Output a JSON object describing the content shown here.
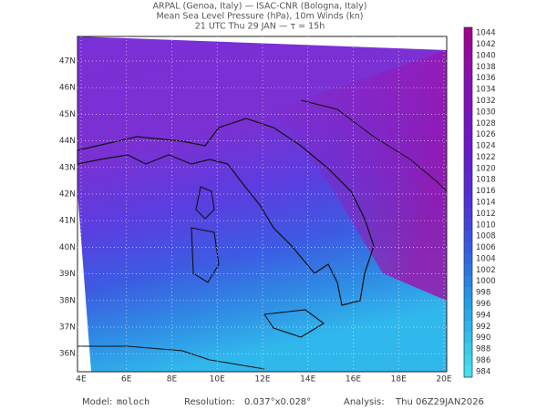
{
  "header": {
    "lines": [
      "ARPAL (Genoa, Italy)  —  ISAC-CNR (Bologna, Italy)",
      "Mean Sea Level Pressure (hPa), 10m Winds (kn)",
      "21 UTC Thu 29 JAN  —  τ = 15h"
    ]
  },
  "map": {
    "lat_labels": [
      "47N",
      "46N",
      "45N",
      "44N",
      "43N",
      "42N",
      "41N",
      "40N",
      "39N",
      "38N",
      "37N",
      "36N"
    ],
    "lon_labels": [
      "4E",
      "6E",
      "8E",
      "10E",
      "12E",
      "14E",
      "16E",
      "18E",
      "20E"
    ]
  },
  "colorbar": {
    "levels": [
      1044,
      1042,
      1040,
      1038,
      1036,
      1034,
      1032,
      1030,
      1028,
      1026,
      1024,
      1022,
      1020,
      1018,
      1016,
      1014,
      1012,
      1010,
      1008,
      1006,
      1004,
      1002,
      1000,
      998,
      996,
      994,
      992,
      990,
      988,
      986,
      984
    ]
  },
  "footer": {
    "model_label": "Model:",
    "model": "moloch",
    "resolution_label": "Resolution:",
    "resolution": "0.037°x0.028°",
    "analysis_label": "Analysis:",
    "analysis": "Thu 06Z29JAN2026"
  }
}
